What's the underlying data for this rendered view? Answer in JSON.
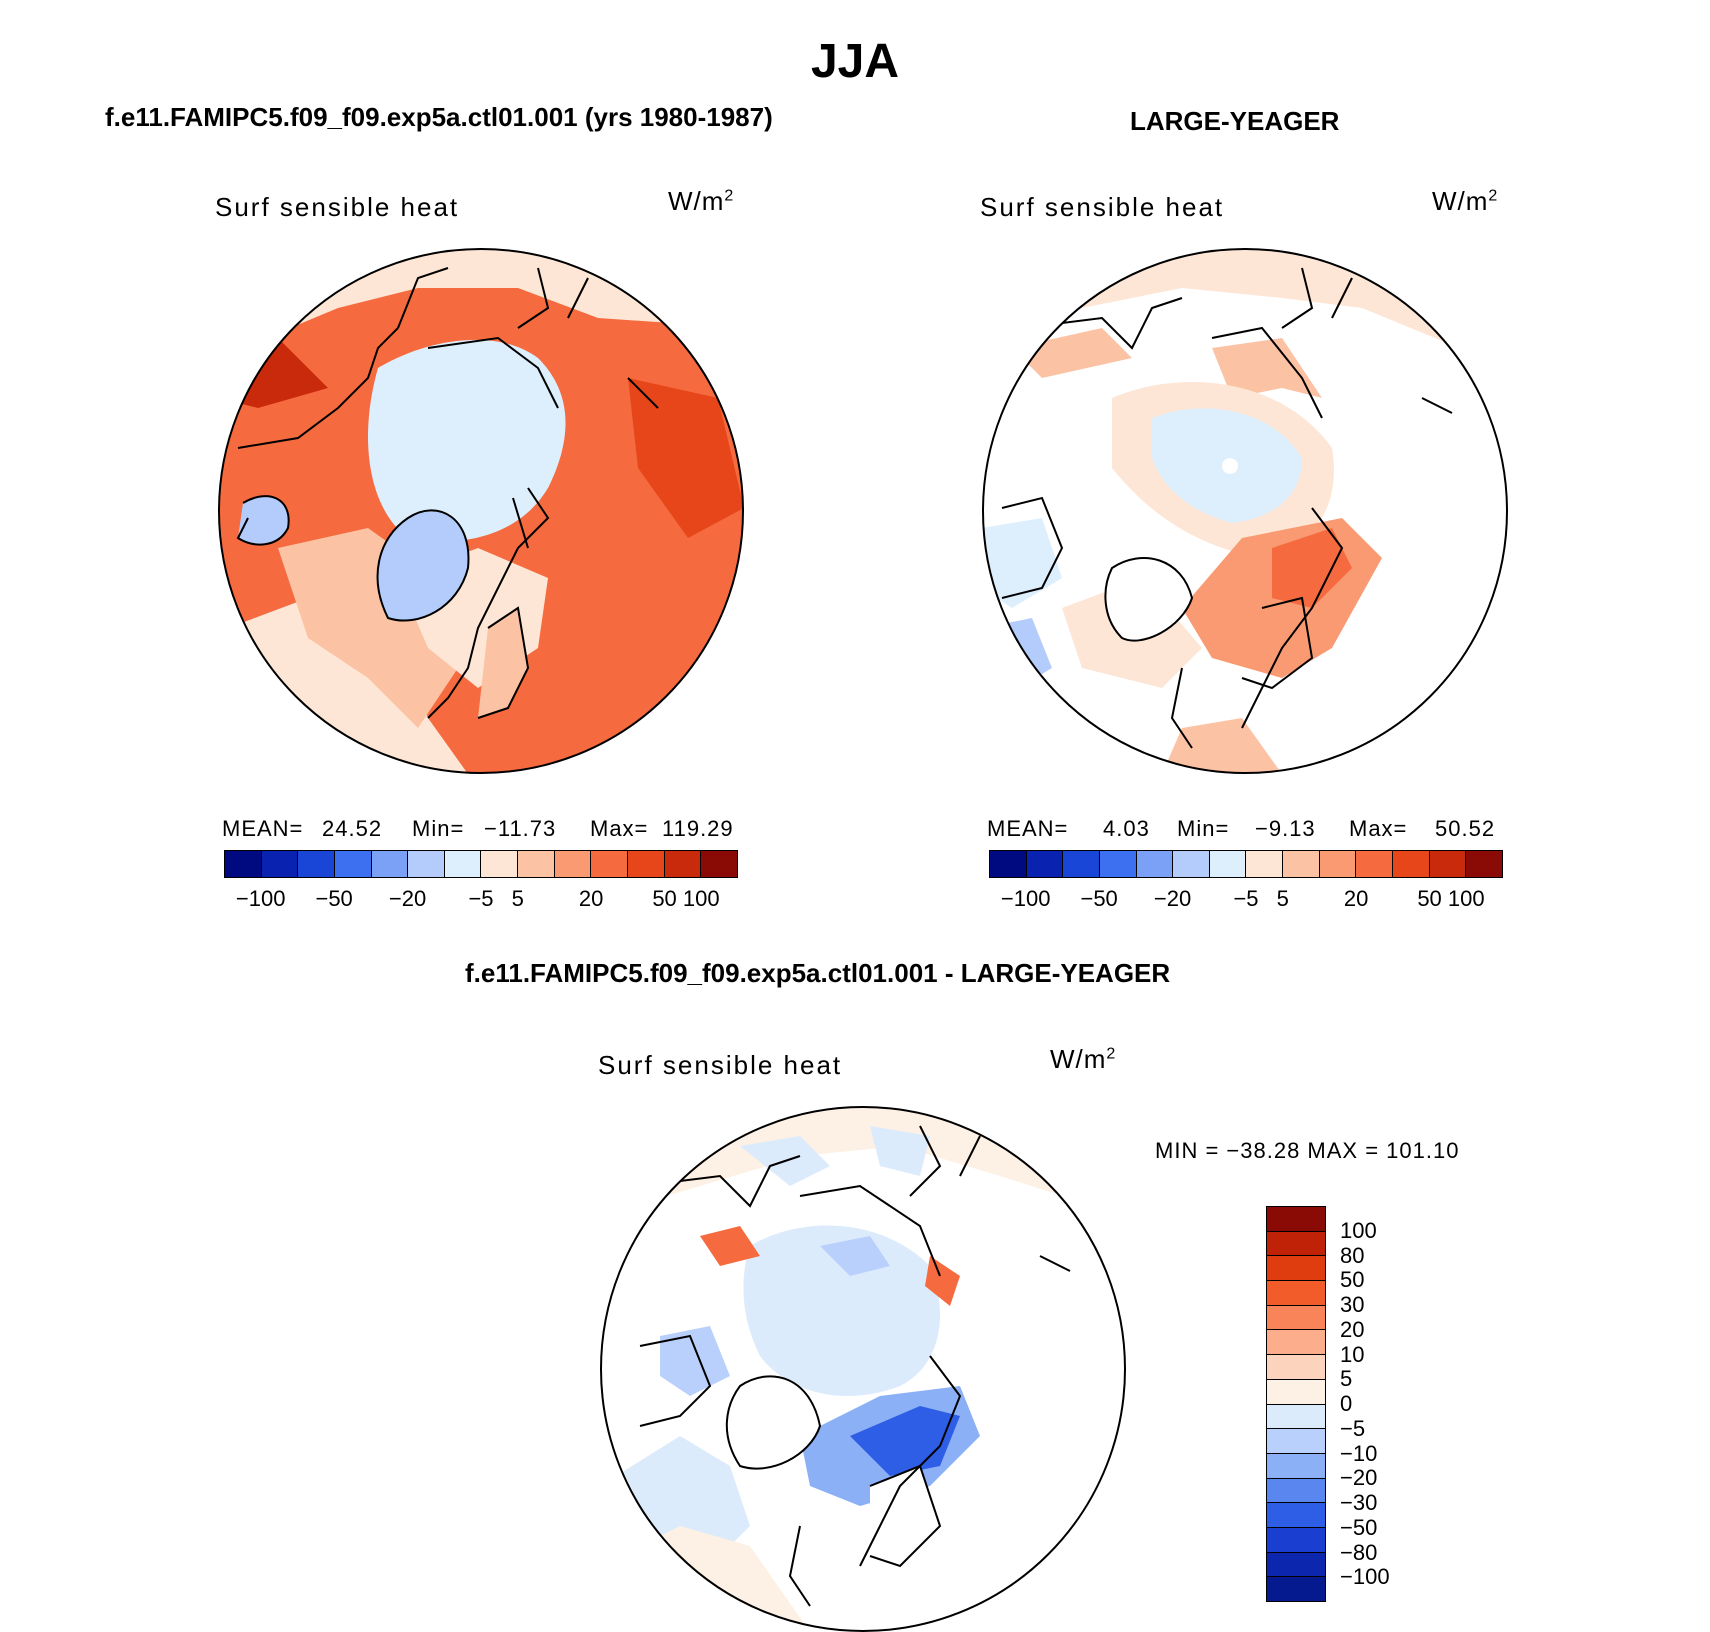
{
  "title": "JJA",
  "panels": [
    {
      "title": "f.e11.FAMIPC5.f09_f09.exp5a.ctl01.001 (yrs 1980-1987)",
      "variable": "Surf  sensible  heat",
      "units": "W/m",
      "units_exp": "2",
      "stats": {
        "mean_label": "MEAN=",
        "mean": "24.52",
        "min_label": "Min=",
        "min": "−11.73",
        "max_label": "Max=",
        "max": "119.29"
      }
    },
    {
      "title": "LARGE-YEAGER",
      "variable": "Surf  sensible  heat",
      "units": "W/m",
      "units_exp": "2",
      "stats": {
        "mean_label": "MEAN=",
        "mean": "4.03",
        "min_label": "Min=",
        "min": "−9.13",
        "max_label": "Max=",
        "max": "50.52"
      }
    },
    {
      "title": "f.e11.FAMIPC5.f09_f09.exp5a.ctl01.001 - LARGE-YEAGER",
      "variable": "Surf  sensible  heat",
      "units": "W/m",
      "units_exp": "2",
      "minmax": "MIN = −38.28 MAX = 101.10"
    }
  ],
  "colorbar_top": {
    "colors": [
      "#000a80",
      "#0a22b0",
      "#1a46d8",
      "#3d70f0",
      "#7aa1f5",
      "#b4ccfb",
      "#ddeefd",
      "#fde6d5",
      "#fcc2a4",
      "#f99a72",
      "#f56a3e",
      "#e6461a",
      "#c92a0c",
      "#8a0a05"
    ],
    "tick_labels": [
      "−100",
      "−50",
      "−20",
      "−5",
      "5",
      "20",
      "50",
      "100"
    ]
  },
  "colorbar_diff": {
    "colors": [
      "#8a0a05",
      "#c02208",
      "#df3c10",
      "#f25c2a",
      "#f9845a",
      "#fcae8c",
      "#fcd4be",
      "#fdf0e4",
      "#dcebfb",
      "#b8d0fb",
      "#8cb0f6",
      "#5a86f0",
      "#2e5de6",
      "#1a3ed0",
      "#0d26ae",
      "#041a8e"
    ],
    "tick_labels": [
      "100",
      "80",
      "50",
      "30",
      "20",
      "10",
      "5",
      "0",
      "−5",
      "−10",
      "−20",
      "−30",
      "−50",
      "−80",
      "−100"
    ]
  }
}
